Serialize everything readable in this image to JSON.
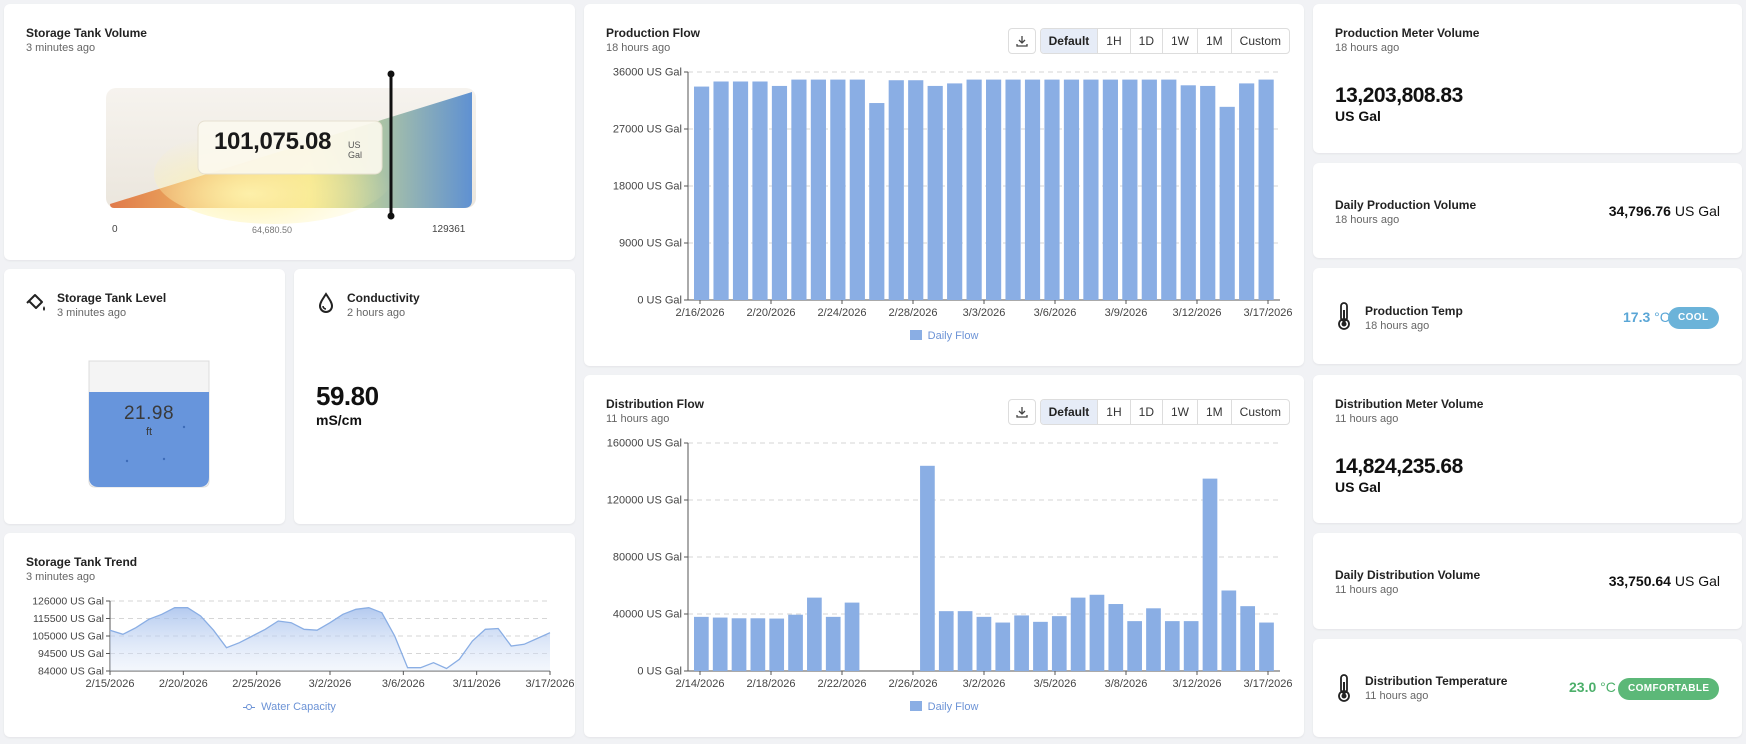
{
  "storage_volume": {
    "title": "Storage Tank Volume",
    "updated": "3 minutes ago",
    "value": "101,075.08",
    "unit_line1": "US",
    "unit_line2": "Gal",
    "min_label": "0",
    "mid_label": "64,680.50",
    "max_label": "129361",
    "level_fraction": 0.78
  },
  "tank_level": {
    "title": "Storage Tank Level",
    "updated": "3 minutes ago",
    "value": "21.98",
    "unit": "ft",
    "fill_fraction": 0.75
  },
  "conductivity": {
    "title": "Conductivity",
    "updated": "2 hours ago",
    "value": "59.80",
    "unit": "mS/cm"
  },
  "trend": {
    "title": "Storage Tank Trend",
    "updated": "3 minutes ago",
    "legend": "Water Capacity"
  },
  "production_flow": {
    "title": "Production Flow",
    "updated": "18 hours ago",
    "legend": "Daily Flow",
    "ranges": [
      "Default",
      "1H",
      "1D",
      "1W",
      "1M",
      "Custom"
    ]
  },
  "distribution_flow": {
    "title": "Distribution Flow",
    "updated": "11 hours ago",
    "legend": "Daily Flow",
    "ranges": [
      "Default",
      "1H",
      "1D",
      "1W",
      "1M",
      "Custom"
    ]
  },
  "prod_meter": {
    "title": "Production Meter Volume",
    "updated": "18 hours ago",
    "value": "13,203,808.83",
    "unit": "US Gal"
  },
  "daily_prod": {
    "title": "Daily Production Volume",
    "updated": "18 hours ago",
    "value": "34,796.76",
    "unit": "US Gal"
  },
  "prod_temp": {
    "title": "Production Temp",
    "updated": "18 hours ago",
    "value": "17.3",
    "unit": "°C",
    "badge": "COOL",
    "value_color": "#5aa6d6",
    "badge_color": "#6bb3d9"
  },
  "dist_meter": {
    "title": "Distribution Meter Volume",
    "updated": "11 hours ago",
    "value": "14,824,235.68",
    "unit": "US Gal"
  },
  "daily_dist": {
    "title": "Daily Distribution Volume",
    "updated": "11 hours ago",
    "value": "33,750.64",
    "unit": "US Gal"
  },
  "dist_temp": {
    "title": "Distribution Temperature",
    "updated": "11 hours ago",
    "value": "23.0",
    "unit": "°C",
    "badge": "COMFORTABLE",
    "value_color": "#4caf6a",
    "badge_color": "#5cb878"
  },
  "colors": {
    "bar": "#8aaee4",
    "area_line": "#8aaee4",
    "accent": "#5b8fd6"
  },
  "chart_data": [
    {
      "type": "area",
      "ylim": [
        84000,
        126000
      ],
      "yticks": [
        84000,
        94500,
        105000,
        115500,
        126000
      ],
      "ytick_labels": [
        "84000 US Gal",
        "94500 US Gal",
        "105000 US Gal",
        "115500 US Gal",
        "126000 US Gal"
      ],
      "xtick_labels": [
        "2/15/2026",
        "2/20/2026",
        "2/25/2026",
        "3/2/2026",
        "3/6/2026",
        "3/11/2026",
        "3/17/2026"
      ],
      "series": [
        {
          "name": "Water Capacity",
          "values": [
            108500,
            106000,
            110000,
            115000,
            118000,
            122000,
            122000,
            117000,
            108500,
            98000,
            101000,
            105000,
            109000,
            114000,
            113000,
            109000,
            108500,
            113000,
            118000,
            121000,
            122000,
            119000,
            105000,
            86000,
            86000,
            89000,
            85500,
            91000,
            102000,
            109000,
            109500,
            99000,
            100000,
            103500,
            107000
          ]
        }
      ]
    },
    {
      "type": "bar",
      "ylim": [
        0,
        36000
      ],
      "yticks": [
        0,
        9000,
        18000,
        27000,
        36000
      ],
      "ytick_labels": [
        "0 US Gal",
        "9000 US Gal",
        "18000 US Gal",
        "27000 US Gal",
        "36000 US Gal"
      ],
      "xtick_labels": [
        "2/16/2026",
        "2/20/2026",
        "2/24/2026",
        "2/28/2026",
        "3/3/2026",
        "3/6/2026",
        "3/9/2026",
        "3/12/2026",
        "3/17/2026"
      ],
      "series": [
        {
          "name": "Daily Flow",
          "values": [
            33700,
            34500,
            34500,
            34500,
            33800,
            34800,
            34800,
            34800,
            34800,
            31100,
            34700,
            34700,
            33800,
            34200,
            34800,
            34800,
            34800,
            34800,
            34800,
            34800,
            34800,
            34800,
            34800,
            34800,
            34800,
            33900,
            33800,
            30500,
            34200,
            34800
          ]
        }
      ]
    },
    {
      "type": "bar",
      "ylim": [
        0,
        160000
      ],
      "yticks": [
        0,
        40000,
        80000,
        120000,
        160000
      ],
      "ytick_labels": [
        "0 US Gal",
        "40000 US Gal",
        "80000 US Gal",
        "120000 US Gal",
        "160000 US Gal"
      ],
      "xtick_labels": [
        "2/14/2026",
        "2/18/2026",
        "2/22/2026",
        "2/26/2026",
        "3/2/2026",
        "3/5/2026",
        "3/8/2026",
        "3/12/2026",
        "3/17/2026"
      ],
      "series": [
        {
          "name": "Daily Flow",
          "values": [
            38000,
            37500,
            37000,
            37000,
            36800,
            39500,
            51500,
            38000,
            48000,
            0,
            0,
            0,
            144000,
            42000,
            42000,
            38000,
            34000,
            39000,
            34500,
            38500,
            51500,
            53500,
            47000,
            35000,
            44000,
            35000,
            35000,
            135000,
            56500,
            45500,
            34000
          ]
        }
      ]
    }
  ]
}
